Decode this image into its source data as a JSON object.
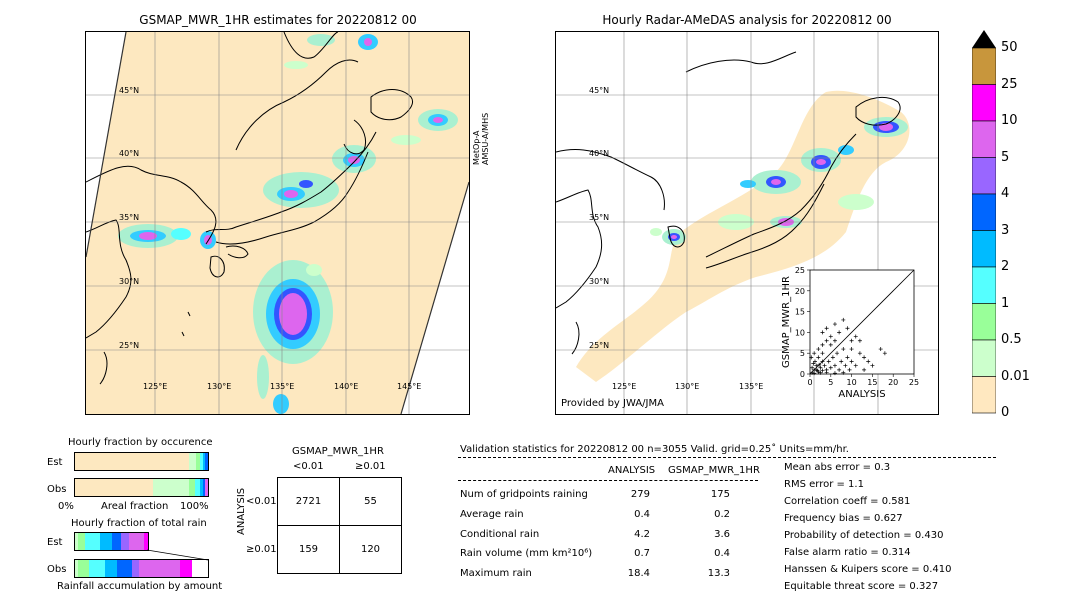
{
  "left_map": {
    "title": "GSMAP_MWR_1HR estimates for 20220812 00",
    "lat_labels": [
      "45°N",
      "40°N",
      "35°N",
      "30°N",
      "25°N"
    ],
    "lon_labels": [
      "125°E",
      "130°E",
      "135°E",
      "140°E",
      "145°E"
    ],
    "side_label_1": "MetOp-A",
    "side_label_2": "AMSU-A/MHS"
  },
  "right_map": {
    "title": "Hourly Radar-AMeDAS analysis for 20220812 00",
    "lat_labels": [
      "45°N",
      "40°N",
      "35°N",
      "30°N",
      "25°N"
    ],
    "lon_labels": [
      "125°E",
      "130°E",
      "135°E"
    ],
    "credit": "Provided by JWA/JMA"
  },
  "colorbar": {
    "ticks": [
      "50",
      "25",
      "10",
      "5",
      "4",
      "3",
      "2",
      "1",
      "0.5",
      "0.01",
      "0"
    ],
    "colors": [
      "#c8963c",
      "#ff00ff",
      "#dd66ee",
      "#9966ff",
      "#0066ff",
      "#00bbff",
      "#55ffff",
      "#99ff99",
      "#ccffcc",
      "#ffe8c0"
    ]
  },
  "occurrence": {
    "title": "Hourly fraction by occurence",
    "row_est": "Est",
    "row_obs": "Obs",
    "x_left": "0%",
    "x_mid": "Areal fraction",
    "x_right": "100%"
  },
  "rainfall": {
    "title": "Hourly fraction of total rain",
    "row_est": "Est",
    "row_obs": "Obs",
    "footer": "Rainfall accumulation by amount"
  },
  "contingency": {
    "header": "GSMAP_MWR_1HR",
    "col1": "<0.01",
    "col2": "≥0.01",
    "row_axis": "ANALYSIS",
    "row1": "<0.01",
    "row2": "≥0.01",
    "cells": [
      "2721",
      "55",
      "159",
      "120"
    ]
  },
  "validation": {
    "header": "Validation statistics for 20220812 00  n=3055 Valid. grid=0.25˚ Units=mm/hr.",
    "col_analysis": "ANALYSIS",
    "col_gsmap": "GSMAP_MWR_1HR",
    "rows": [
      {
        "label": "Num of gridpoints raining",
        "a": "279",
        "g": "175"
      },
      {
        "label": "Average rain",
        "a": "0.4",
        "g": "0.2"
      },
      {
        "label": "Conditional rain",
        "a": "4.2",
        "g": "3.6"
      },
      {
        "label": "Rain volume (mm km²10⁶)",
        "a": "0.7",
        "g": "0.4"
      },
      {
        "label": "Maximum rain",
        "a": "18.4",
        "g": "13.3"
      }
    ],
    "scores": [
      "Mean abs error =    0.3",
      "RMS error =    1.1",
      "Correlation coeff =  0.581",
      "Frequency bias =  0.627",
      "Probability of detection =  0.430",
      "False alarm ratio =  0.314",
      "Hanssen & Kuipers score =  0.410",
      "Equitable threat score =  0.327"
    ]
  },
  "chart_data": {
    "type": "scatter",
    "title": "",
    "xlabel": "ANALYSIS",
    "ylabel": "GSMAP_MWR_1HR",
    "xlim": [
      0,
      25
    ],
    "ylim": [
      0,
      25
    ],
    "xticks": [
      "0",
      "5",
      "10",
      "15",
      "20",
      "25"
    ],
    "yticks": [
      "0",
      "5",
      "10",
      "15",
      "20",
      "25"
    ],
    "diagonal": true,
    "points": [
      [
        0.5,
        0.3
      ],
      [
        1,
        0.2
      ],
      [
        1.5,
        1
      ],
      [
        2,
        0.5
      ],
      [
        2.5,
        1.5
      ],
      [
        3,
        0.8
      ],
      [
        3.5,
        2
      ],
      [
        4,
        1
      ],
      [
        0.8,
        2.5
      ],
      [
        1.2,
        3
      ],
      [
        2,
        4
      ],
      [
        3,
        5
      ],
      [
        0.5,
        1.5
      ],
      [
        1.8,
        0.8
      ],
      [
        2.2,
        2.2
      ],
      [
        4.5,
        3
      ],
      [
        5,
        1.5
      ],
      [
        5.5,
        4
      ],
      [
        6,
        2
      ],
      [
        6.5,
        5
      ],
      [
        7,
        1
      ],
      [
        7.5,
        3
      ],
      [
        8,
        6
      ],
      [
        8.5,
        2
      ],
      [
        9,
        4
      ],
      [
        9.5,
        1
      ],
      [
        10,
        3
      ],
      [
        11,
        2
      ],
      [
        12,
        5
      ],
      [
        13,
        4
      ],
      [
        3,
        10
      ],
      [
        4,
        11
      ],
      [
        5,
        9
      ],
      [
        6,
        12
      ],
      [
        7,
        10
      ],
      [
        8,
        13
      ],
      [
        9,
        11
      ],
      [
        10,
        8
      ],
      [
        11,
        9
      ],
      [
        5,
        7
      ],
      [
        2,
        6
      ],
      [
        3,
        7
      ],
      [
        4,
        8
      ],
      [
        6,
        8
      ],
      [
        17,
        6
      ],
      [
        18,
        5
      ],
      [
        1,
        5
      ],
      [
        0.3,
        4
      ],
      [
        2.5,
        0.3
      ],
      [
        4,
        0.4
      ],
      [
        6,
        0.2
      ],
      [
        8,
        0.3
      ],
      [
        1,
        1
      ],
      [
        1.5,
        2
      ],
      [
        3,
        3
      ],
      [
        15,
        2
      ],
      [
        13,
        1
      ],
      [
        10,
        6
      ],
      [
        12,
        8
      ],
      [
        14,
        3
      ]
    ]
  }
}
